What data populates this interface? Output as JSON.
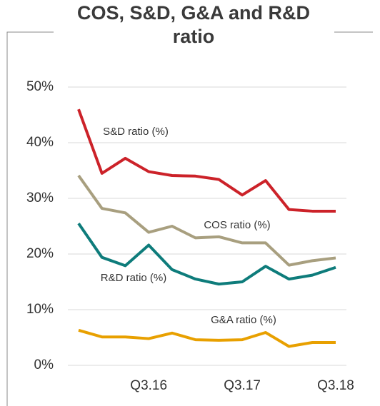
{
  "chart_data": {
    "type": "line",
    "title": "COS, S&D, G&A and R&D ratio",
    "categories": [
      null,
      null,
      null,
      "Q3.16",
      null,
      null,
      null,
      "Q3.17",
      null,
      null,
      null,
      "Q3.18"
    ],
    "series": [
      {
        "name": "S&D ratio (%)",
        "color": "#cc2229",
        "values": [
          46.0,
          34.5,
          37.2,
          34.8,
          34.1,
          34.0,
          33.4,
          30.6,
          33.2,
          28.0,
          27.7,
          27.7
        ]
      },
      {
        "name": "COS ratio (%)",
        "color": "#a89f7f",
        "values": [
          34.1,
          28.2,
          27.4,
          23.9,
          25.0,
          22.9,
          23.1,
          22.0,
          22.0,
          18.0,
          18.8,
          19.3
        ]
      },
      {
        "name": "R&D ratio (%)",
        "color": "#0e7c7b",
        "values": [
          25.5,
          19.4,
          17.9,
          21.6,
          17.2,
          15.5,
          14.6,
          15.0,
          17.8,
          15.5,
          16.2,
          17.6
        ]
      },
      {
        "name": "G&A ratio (%)",
        "color": "#e8a000",
        "values": [
          6.3,
          5.1,
          5.1,
          4.8,
          5.8,
          4.6,
          4.5,
          4.6,
          5.9,
          3.4,
          4.1,
          4.1
        ]
      }
    ],
    "ylim": [
      0,
      50
    ],
    "yticks": [
      {
        "value": 0,
        "label": "0%"
      },
      {
        "value": 10,
        "label": "10%"
      },
      {
        "value": 20,
        "label": "20%"
      },
      {
        "value": 30,
        "label": "30%"
      },
      {
        "value": 40,
        "label": "40%"
      },
      {
        "value": 50,
        "label": "50%"
      }
    ],
    "grid": true
  }
}
